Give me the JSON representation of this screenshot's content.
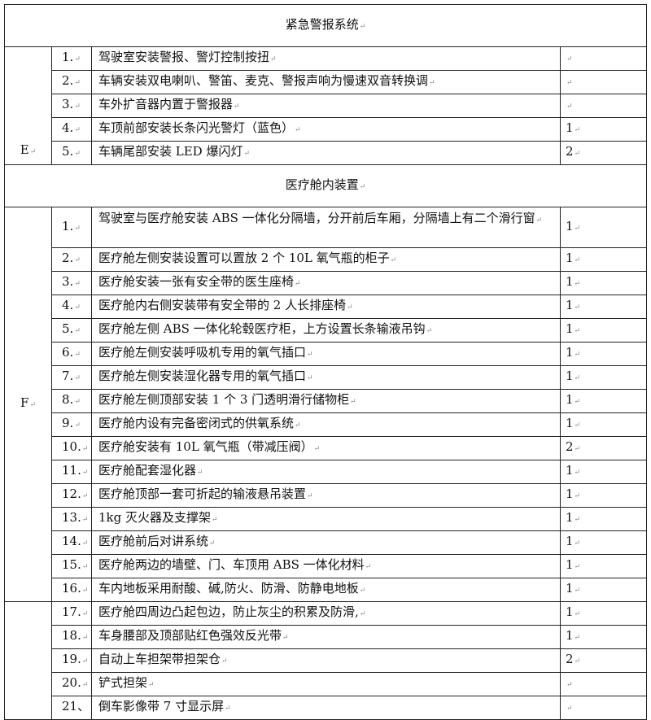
{
  "sections": [
    {
      "title": "紧急警报系统",
      "group": "E",
      "items": [
        {
          "no": "1.",
          "text": "驾驶室安装警报、警灯控制按扭",
          "qty": ""
        },
        {
          "no": "2.",
          "text": "车辆安装双电喇叭、警笛、麦克、警报声响为慢速双音转换调",
          "qty": ""
        },
        {
          "no": "3.",
          "text": "车外扩音器内置于警报器",
          "qty": ""
        },
        {
          "no": "4.",
          "text": "车顶前部安装长条闪光警灯（蓝色）",
          "qty": "1"
        },
        {
          "no": "5.",
          "text": "车辆尾部安装 LED 爆闪灯",
          "qty": "2"
        }
      ]
    },
    {
      "title": "医疗舱内装置",
      "group": "F",
      "items": [
        {
          "no": "1.",
          "text": "驾驶室与医疗舱安装 ABS 一体化分隔墙，分开前后车厢，分隔墙上有二个滑行窗",
          "qty": "1"
        },
        {
          "no": "2.",
          "text": "医疗舱左侧安装设置可以置放 2 个 10L 氧气瓶的柜子",
          "qty": "1"
        },
        {
          "no": "3.",
          "text": "医疗舱安装一张有安全带的医生座椅",
          "qty": "1"
        },
        {
          "no": "4.",
          "text": "医疗舱内右侧安装带有安全带的 2 人长排座椅",
          "qty": "1"
        },
        {
          "no": "5.",
          "text": "医疗舱左侧 ABS 一体化轮毂医疗柜，上方设置长条输液吊钩",
          "qty": "1"
        },
        {
          "no": "6.",
          "text": "医疗舱左侧安装呼吸机专用的氧气插口",
          "qty": "1"
        },
        {
          "no": "7.",
          "text": "医疗舱左侧安装湿化器专用的氧气插口",
          "qty": "1"
        },
        {
          "no": "8.",
          "text": "医疗舱左侧顶部安装 1 个 3 门透明滑行储物柜",
          "qty": "1"
        },
        {
          "no": "9.",
          "text": "医疗舱内设有完备密闭式的供氧系统",
          "qty": "1"
        },
        {
          "no": "10.",
          "text": "医疗舱安装有 10L 氧气瓶（带减压阀）",
          "qty": "2"
        },
        {
          "no": "11.",
          "text": "医疗舱配套湿化器",
          "qty": "1"
        },
        {
          "no": "12.",
          "text": "医疗舱顶部一套可折起的输液悬吊装置",
          "qty": "1"
        },
        {
          "no": "13.",
          "text": "1kg 灭火器及支撑架",
          "qty": "1"
        },
        {
          "no": "14.",
          "text": "医疗舱前后对讲系统",
          "qty": "1"
        },
        {
          "no": "15.",
          "text": "医疗舱两边的墙壁、门、车顶用 ABS 一体化材料",
          "qty": "1"
        },
        {
          "no": "16.",
          "text": "车内地板采用耐酸、碱,防火、防滑、防静电地板",
          "qty": "1"
        }
      ]
    },
    {
      "title": "",
      "group": "",
      "items": [
        {
          "no": "17.",
          "text": "医疗舱四周边凸起包边，防止灰尘的积累及防滑,",
          "qty": "1"
        },
        {
          "no": "18.",
          "text": "车身腰部及顶部贴红色强效反光带",
          "qty": "1"
        },
        {
          "no": "19.",
          "text": "自动上车担架带担架仓",
          "qty": "2"
        },
        {
          "no": "20.",
          "text": "铲式担架",
          "qty": ""
        },
        {
          "no": "21、",
          "text": "倒车影像带 7 寸显示屏",
          "qty": ""
        }
      ]
    }
  ]
}
